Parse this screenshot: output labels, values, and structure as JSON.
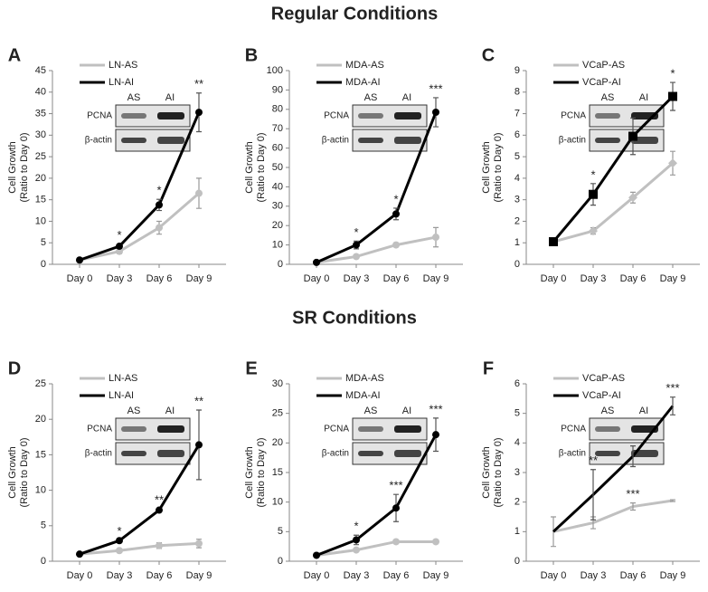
{
  "headings": [
    "Regular Conditions",
    "SR Conditions"
  ],
  "chart_data": [
    {
      "type": "line",
      "panel": "A",
      "ylabel": [
        "Cell Growth",
        "(Ratio to Day 0)"
      ],
      "categories": [
        "Day 0",
        "Day 3",
        "Day 6",
        "Day 9"
      ],
      "ylim": [
        0,
        45
      ],
      "yticks": [
        0,
        5,
        10,
        15,
        20,
        25,
        30,
        35,
        40,
        45
      ],
      "inset": {
        "lanes": [
          "AS",
          "AI"
        ],
        "bands": [
          "PCNA",
          "β-actin"
        ]
      },
      "series": [
        {
          "name": "LN-AS",
          "color": "#c0c0c0",
          "marker": "circle",
          "values": [
            1,
            3,
            8.5,
            16.5
          ],
          "errors": [
            0.2,
            0.5,
            1.5,
            3.5
          ],
          "annotations": [
            null,
            null,
            null,
            null
          ]
        },
        {
          "name": "LN-AI",
          "color": "#000000",
          "marker": "circle",
          "values": [
            1,
            4.2,
            13.8,
            35.3
          ],
          "errors": [
            0.2,
            0.5,
            1.3,
            4.5
          ],
          "annotations": [
            null,
            "*",
            "*",
            "**"
          ]
        }
      ]
    },
    {
      "type": "line",
      "panel": "B",
      "ylabel": [
        "Cell Growth",
        "(Ratio to Day 0)"
      ],
      "categories": [
        "Day 0",
        "Day 3",
        "Day 6",
        "Day 9"
      ],
      "ylim": [
        0,
        100
      ],
      "yticks": [
        0,
        10,
        20,
        30,
        40,
        50,
        60,
        70,
        80,
        90,
        100
      ],
      "inset": {
        "lanes": [
          "AS",
          "AI"
        ],
        "bands": [
          "PCNA",
          "β-actin"
        ]
      },
      "series": [
        {
          "name": "MDA-AS",
          "color": "#c0c0c0",
          "marker": "circle",
          "values": [
            1,
            4,
            10,
            14
          ],
          "errors": [
            0.3,
            0.5,
            1,
            5
          ],
          "annotations": [
            null,
            null,
            null,
            null
          ]
        },
        {
          "name": "MDA-AI",
          "color": "#000000",
          "marker": "circle",
          "values": [
            1,
            10,
            26,
            78.5
          ],
          "errors": [
            0.3,
            2,
            3,
            7.5
          ],
          "annotations": [
            null,
            "*",
            "*",
            "***"
          ]
        }
      ]
    },
    {
      "type": "line",
      "panel": "C",
      "ylabel": [
        "Cell Growth",
        "(Ratio to Day 0)"
      ],
      "categories": [
        "Day 0",
        "Day 3",
        "Day 6",
        "Day 9"
      ],
      "ylim": [
        0,
        9
      ],
      "yticks": [
        0,
        1,
        2,
        3,
        4,
        5,
        6,
        7,
        8,
        9
      ],
      "inset": {
        "lanes": [
          "AS",
          "AI"
        ],
        "bands": [
          "PCNA",
          "β-actin"
        ]
      },
      "series": [
        {
          "name": "VCaP-AS",
          "color": "#c0c0c0",
          "marker": "diamond",
          "values": [
            1.05,
            1.55,
            3.1,
            4.7
          ],
          "errors": [
            0.05,
            0.15,
            0.25,
            0.55
          ],
          "annotations": [
            null,
            null,
            null,
            null
          ]
        },
        {
          "name": "VCaP-AI",
          "color": "#000000",
          "marker": "square",
          "values": [
            1.05,
            3.25,
            5.95,
            7.8
          ],
          "errors": [
            0.05,
            0.5,
            0.85,
            0.65
          ],
          "annotations": [
            null,
            "*",
            null,
            "*"
          ]
        }
      ]
    },
    {
      "type": "line",
      "panel": "D",
      "ylabel": [
        "Cell Growth",
        "(Ratio to Day 0)"
      ],
      "categories": [
        "Day 0",
        "Day 3",
        "Day 6",
        "Day 9"
      ],
      "ylim": [
        0,
        25
      ],
      "yticks": [
        0,
        5,
        10,
        15,
        20,
        25
      ],
      "inset": {
        "lanes": [
          "AS",
          "AI"
        ],
        "bands": [
          "PCNA",
          "β-actin"
        ]
      },
      "series": [
        {
          "name": "LN-AS",
          "color": "#c0c0c0",
          "marker": "circle",
          "values": [
            1,
            1.5,
            2.2,
            2.5
          ],
          "errors": [
            0.1,
            0.2,
            0.4,
            0.6
          ],
          "annotations": [
            null,
            null,
            null,
            null
          ]
        },
        {
          "name": "LN-AI",
          "color": "#000000",
          "marker": "circle",
          "values": [
            1,
            2.9,
            7.2,
            16.4
          ],
          "errors": [
            0.1,
            0.1,
            0.2,
            4.9
          ],
          "annotations": [
            null,
            "*",
            "**",
            "**"
          ]
        }
      ]
    },
    {
      "type": "line",
      "panel": "E",
      "ylabel": [
        "Cell Growth",
        "(Ratio to Day 0)"
      ],
      "categories": [
        "Day 0",
        "Day 3",
        "Day 6",
        "Day 9"
      ],
      "ylim": [
        0,
        30
      ],
      "yticks": [
        0,
        5,
        10,
        15,
        20,
        25,
        30
      ],
      "inset": {
        "lanes": [
          "AS",
          "AI"
        ],
        "bands": [
          "PCNA",
          "β-actin"
        ]
      },
      "series": [
        {
          "name": "MDA-AS",
          "color": "#c0c0c0",
          "marker": "circle",
          "values": [
            1,
            1.9,
            3.3,
            3.3
          ],
          "errors": [
            0.1,
            0.2,
            0.2,
            0.2
          ],
          "annotations": [
            null,
            null,
            null,
            null
          ]
        },
        {
          "name": "MDA-AI",
          "color": "#000000",
          "marker": "circle",
          "values": [
            1,
            3.6,
            9,
            21.4
          ],
          "errors": [
            0.1,
            0.8,
            2.3,
            2.8
          ],
          "annotations": [
            null,
            "*",
            "***",
            "***"
          ]
        }
      ]
    },
    {
      "type": "line",
      "panel": "F",
      "ylabel": [
        "Cell Growth",
        "(Ratio to Day 0)"
      ],
      "categories": [
        "Day 0",
        "Day 3",
        "Day 6",
        "Day 9"
      ],
      "ylim": [
        0,
        6
      ],
      "yticks": [
        0,
        1,
        2,
        3,
        4,
        5,
        6
      ],
      "inset": {
        "lanes": [
          "AS",
          "AI"
        ],
        "bands": [
          "PCNA",
          "β-actin"
        ]
      },
      "series": [
        {
          "name": "VCaP-AS",
          "color": "#c0c0c0",
          "marker": "none",
          "values": [
            1,
            1.3,
            1.85,
            2.05
          ],
          "errors": [
            0.5,
            0.2,
            0.12,
            0.03
          ],
          "annotations": [
            null,
            null,
            "***",
            null
          ]
        },
        {
          "name": "VCaP-AI",
          "color": "#000000",
          "marker": "none",
          "values": [
            1,
            2.25,
            3.55,
            5.25
          ],
          "errors": [
            0,
            0.85,
            0.35,
            0.3
          ],
          "annotations": [
            null,
            "**",
            null,
            "***"
          ]
        }
      ]
    }
  ]
}
